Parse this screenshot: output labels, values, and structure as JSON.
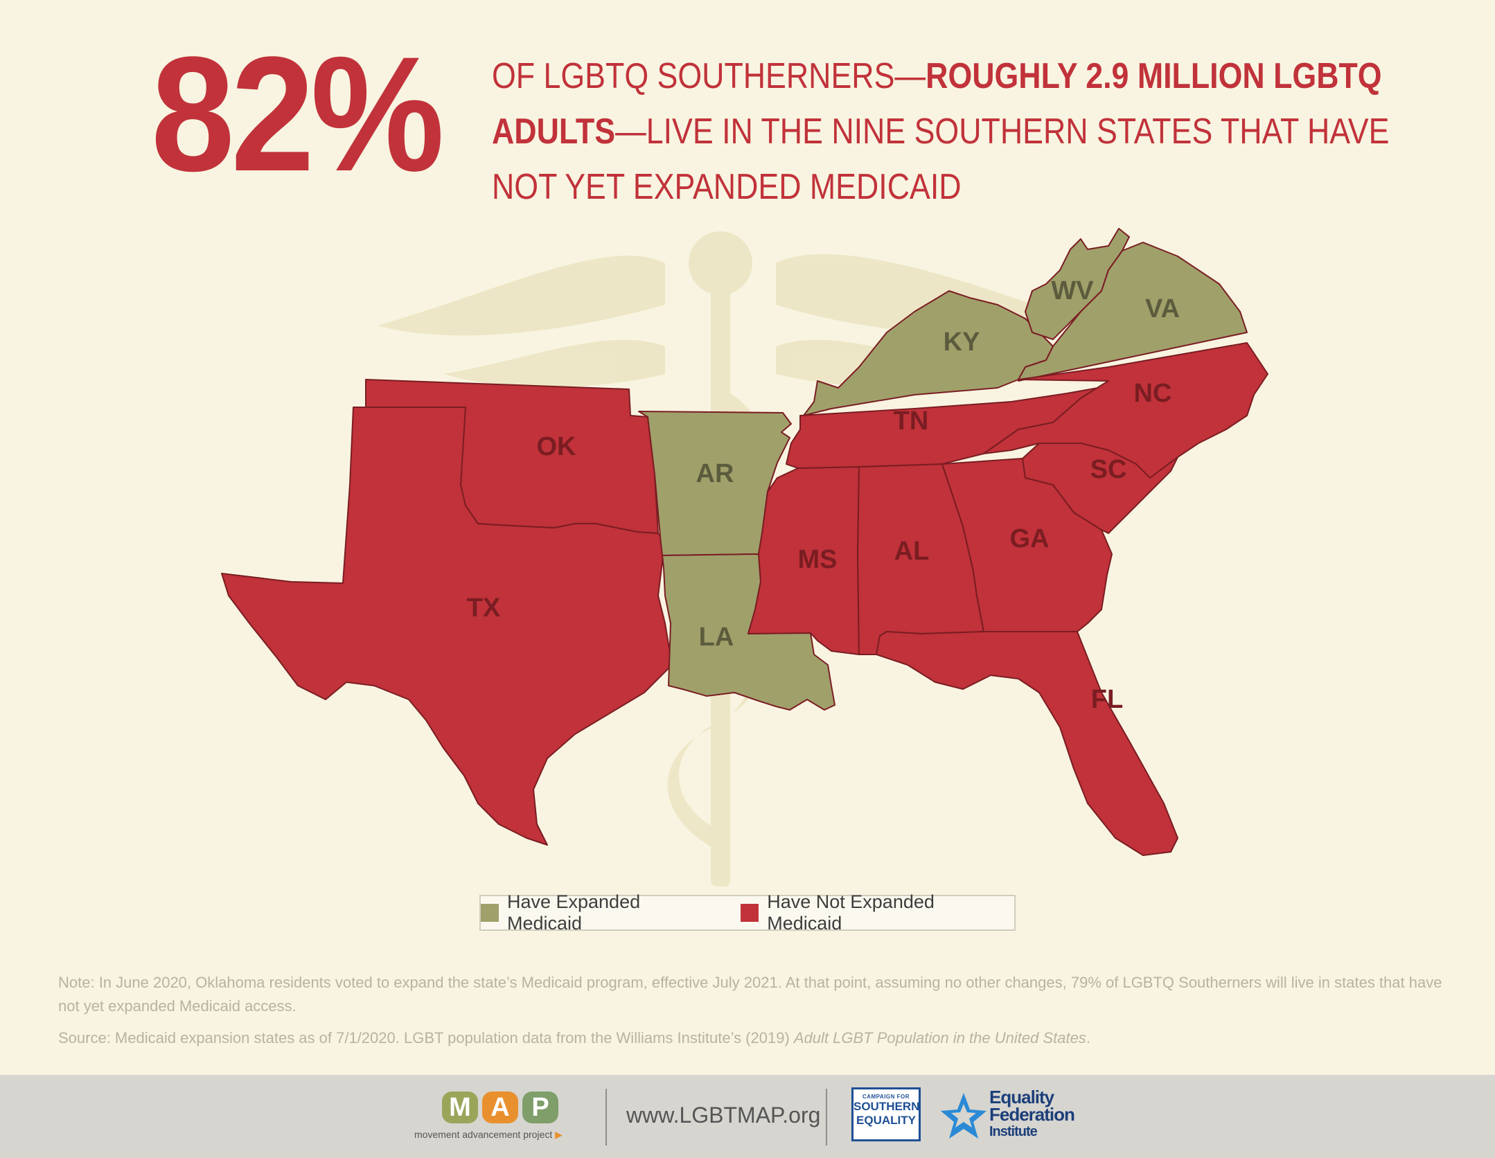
{
  "headline": {
    "percent": "82%",
    "line_part1": "OF LGBTQ SOUTHERNERS—",
    "line_bold": "ROUGHLY 2.9 MILLION LGBTQ ADULTS",
    "line_part2": "—LIVE IN THE NINE SOUTHERN STATES THAT HAVE NOT YET EXPANDED MEDICAID"
  },
  "map": {
    "states": [
      {
        "code": "TX",
        "expanded": false
      },
      {
        "code": "OK",
        "expanded": false
      },
      {
        "code": "AR",
        "expanded": true
      },
      {
        "code": "LA",
        "expanded": true
      },
      {
        "code": "MS",
        "expanded": false
      },
      {
        "code": "AL",
        "expanded": false
      },
      {
        "code": "GA",
        "expanded": false
      },
      {
        "code": "FL",
        "expanded": false
      },
      {
        "code": "TN",
        "expanded": false
      },
      {
        "code": "KY",
        "expanded": true
      },
      {
        "code": "WV",
        "expanded": true
      },
      {
        "code": "VA",
        "expanded": true
      },
      {
        "code": "NC",
        "expanded": false
      },
      {
        "code": "SC",
        "expanded": false
      }
    ],
    "colors": {
      "expanded": "#a0a06b",
      "not_expanded": "#c1323a",
      "label_expanded": "#5b5c3d",
      "label_not_expanded": "#7a1d22",
      "border": "#7a1d22"
    }
  },
  "legend": {
    "expanded_label": "Have Expanded Medicaid",
    "not_expanded_label": "Have Not Expanded Medicaid"
  },
  "note": "Note: In June 2020, Oklahoma residents voted to expand the state’s Medicaid program, effective July 2021. At that point, assuming no other changes, 79% of LGBTQ Southerners will live in states that have not yet expanded Medicaid access.",
  "source": {
    "text": "Source: Medicaid expansion states as of 7/1/2020. LGBT population data from the Williams Institute’s (2019) ",
    "italic": "Adult LGBT Population in the United States",
    "end": "."
  },
  "footer": {
    "map_letters": [
      "M",
      "A",
      "P"
    ],
    "map_letter_colors": [
      "#9aa55a",
      "#e9902e",
      "#7f9e6a"
    ],
    "map_tagline": "movement advancement project",
    "website": "www.LGBTMAP.org",
    "cse_small": "CAMPAIGN FOR",
    "cse_line1": "SOUTHERN",
    "cse_line2": "EQUALITY",
    "efi_line1": "Equality",
    "efi_line2": "Federation",
    "efi_line3": "Institute"
  }
}
